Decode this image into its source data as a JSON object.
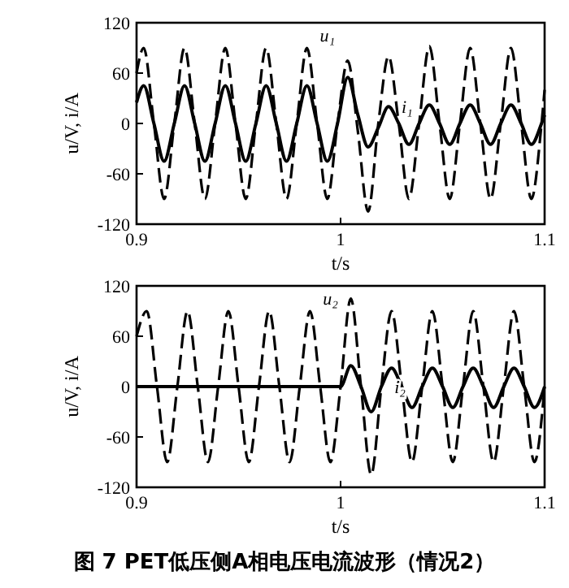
{
  "chart_data": [
    {
      "type": "line",
      "xlabel": "t/s",
      "ylabel": "u/V, i/A",
      "xlim": [
        0.9,
        1.1
      ],
      "xticks": [
        0.9,
        1,
        1.1
      ],
      "ylim": [
        -120,
        120
      ],
      "yticks": [
        -120,
        -60,
        0,
        60,
        120
      ],
      "x": [
        0.9,
        0.9035,
        0.9085,
        0.9135,
        0.9185,
        0.9235,
        0.9285,
        0.9335,
        0.9385,
        0.9435,
        0.9485,
        0.9535,
        0.9585,
        0.9635,
        0.9685,
        0.9735,
        0.9785,
        0.9835,
        0.9885,
        0.9935,
        0.9985,
        1.0035,
        1.0085,
        1.0135,
        1.0185,
        1.0235,
        1.0285,
        1.0335,
        1.0385,
        1.0435,
        1.0485,
        1.0535,
        1.0585,
        1.0635,
        1.0685,
        1.0735,
        1.0785,
        1.0835,
        1.0885,
        1.0935,
        1.0985,
        1.1
      ],
      "series": [
        {
          "name": "u₁",
          "color": "#000000",
          "line_style": "dashed",
          "values": [
            60,
            90,
            0,
            -90,
            0,
            90,
            0,
            -90,
            0,
            90,
            0,
            -90,
            0,
            90,
            0,
            -90,
            0,
            90,
            0,
            -90,
            0,
            75,
            -10,
            -105,
            0,
            80,
            0,
            -90,
            0,
            92,
            0,
            -90,
            0,
            90,
            0,
            -90,
            0,
            90,
            0,
            -90,
            0,
            40
          ]
        },
        {
          "name": "i₁",
          "color": "#000000",
          "line_style": "solid",
          "values": [
            25,
            45,
            0,
            -45,
            0,
            45,
            0,
            -45,
            0,
            45,
            0,
            -45,
            0,
            45,
            0,
            -45,
            0,
            45,
            0,
            -45,
            0,
            55,
            10,
            -28,
            -5,
            20,
            0,
            -25,
            0,
            22,
            0,
            -25,
            0,
            22,
            0,
            -25,
            0,
            22,
            0,
            -25,
            0,
            10
          ]
        }
      ]
    },
    {
      "type": "line",
      "xlabel": "t/s",
      "ylabel": "u/V, i/A",
      "xlim": [
        0.9,
        1.1
      ],
      "xticks": [
        0.9,
        1,
        1.1
      ],
      "ylim": [
        -120,
        120
      ],
      "yticks": [
        -120,
        -60,
        0,
        60,
        120
      ],
      "x": [
        0.9,
        0.905,
        0.91,
        0.915,
        0.92,
        0.925,
        0.93,
        0.935,
        0.94,
        0.945,
        0.95,
        0.955,
        0.96,
        0.965,
        0.97,
        0.975,
        0.98,
        0.985,
        0.99,
        0.995,
        1,
        1.005,
        1.01,
        1.015,
        1.02,
        1.025,
        1.03,
        1.035,
        1.04,
        1.045,
        1.05,
        1.055,
        1.06,
        1.065,
        1.07,
        1.075,
        1.08,
        1.085,
        1.09,
        1.095,
        1.1
      ],
      "series": [
        {
          "name": "u₂",
          "color": "#000000",
          "line_style": "dashed",
          "values": [
            60,
            90,
            0,
            -90,
            0,
            90,
            0,
            -90,
            0,
            90,
            0,
            -90,
            0,
            90,
            0,
            -90,
            0,
            90,
            0,
            -90,
            0,
            105,
            0,
            -105,
            0,
            90,
            0,
            -90,
            0,
            90,
            0,
            -90,
            0,
            90,
            0,
            -90,
            0,
            90,
            0,
            -90,
            0
          ]
        },
        {
          "name": "i₂",
          "color": "#000000",
          "line_style": "solid",
          "values": [
            0,
            0,
            0,
            0,
            0,
            0,
            0,
            0,
            0,
            0,
            0,
            0,
            0,
            0,
            0,
            0,
            0,
            0,
            0,
            0,
            0,
            25,
            0,
            -30,
            0,
            22,
            0,
            -25,
            0,
            22,
            0,
            -25,
            0,
            22,
            0,
            -25,
            0,
            22,
            0,
            -25,
            0
          ]
        }
      ],
      "annotations": [
        "图 7  PET低压侧A相电压电流波形（情况2）"
      ]
    }
  ]
}
